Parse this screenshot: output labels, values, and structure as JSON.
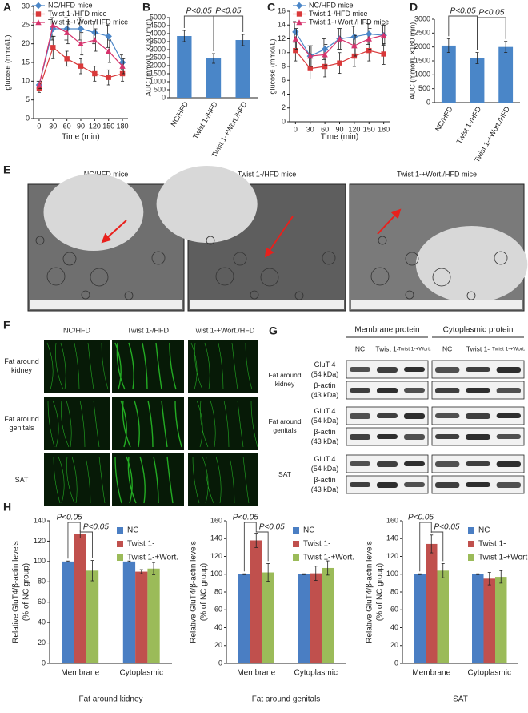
{
  "chart_data": [
    {
      "panel": "A",
      "type": "line",
      "x": [
        0,
        30,
        60,
        90,
        120,
        150,
        180
      ],
      "xlim": [
        -12,
        192
      ],
      "xticks": [
        0,
        30,
        60,
        90,
        120,
        150,
        180
      ],
      "ylim": [
        0,
        30
      ],
      "yticks": [
        0,
        5,
        10,
        15,
        20,
        25,
        30
      ],
      "xlabel": "Time (min)",
      "ylabel": "glucose (mmol/L)",
      "legend": "top-left",
      "series": [
        {
          "name": "NC/HFD mice",
          "color": "#4a86c8",
          "marker": "diamond",
          "values": [
            9,
            24,
            24,
            24,
            23,
            22,
            15
          ],
          "errors": [
            1,
            3,
            3,
            3,
            3,
            3,
            2
          ]
        },
        {
          "name": "Twist 1-/HFD mice",
          "color": "#d9393a",
          "marker": "square",
          "values": [
            8,
            19,
            16,
            14,
            12,
            11,
            12
          ],
          "errors": [
            1,
            3,
            2,
            2,
            2,
            2,
            2
          ]
        },
        {
          "name": "Twist 1-+Wort./HFD mice",
          "color": "#d6336c",
          "marker": "triangle",
          "values": [
            9,
            25,
            23,
            20,
            21,
            18,
            14
          ],
          "errors": [
            1,
            3,
            3,
            3,
            3,
            3,
            2
          ]
        }
      ]
    },
    {
      "panel": "B",
      "type": "bar",
      "categories": [
        "NC/HFD",
        "Twist 1-/HFD",
        "Twist 1-+Wort./HFD"
      ],
      "values": [
        3850,
        2450,
        3600
      ],
      "errors": [
        350,
        300,
        350
      ],
      "color": "#4a86c8",
      "ylim": [
        0,
        5000
      ],
      "yticks": [
        0,
        500,
        1000,
        1500,
        2000,
        2500,
        3000,
        3500,
        4000,
        4500,
        5000
      ],
      "ylabel": "AUC (mmol/L ×180 min)",
      "annotations": [
        "P<0.05",
        "P<0.05"
      ]
    },
    {
      "panel": "C",
      "type": "line",
      "x": [
        0,
        30,
        60,
        90,
        120,
        150,
        180
      ],
      "xlim": [
        -12,
        192
      ],
      "xticks": [
        0,
        30,
        60,
        90,
        120,
        150,
        180
      ],
      "ylim": [
        0,
        16
      ],
      "yticks": [
        0,
        2,
        4,
        6,
        8,
        10,
        12,
        14,
        16
      ],
      "xlabel": "Time (min)",
      "ylabel": "glucose (mmol/L)",
      "legend": "top-left",
      "series": [
        {
          "name": "NC/HFD mice",
          "color": "#4a86c8",
          "marker": "diamond",
          "values": [
            13,
            9.5,
            10.5,
            12,
            12.3,
            12.7,
            12.5
          ],
          "errors": [
            1.5,
            1.5,
            1.5,
            1.5,
            1.5,
            1.5,
            1.5
          ]
        },
        {
          "name": "Twist 1-/HFD mice",
          "color": "#d9393a",
          "marker": "square",
          "values": [
            10.3,
            7.7,
            8,
            8.5,
            9.5,
            10.3,
            9.8
          ],
          "errors": [
            1.5,
            1.5,
            1.5,
            1.5,
            1.5,
            1.5,
            1.5
          ]
        },
        {
          "name": "Twist 1-+Wort./HFD mice",
          "color": "#d6336c",
          "marker": "triangle",
          "values": [
            12,
            9.5,
            9.7,
            12,
            11,
            12,
            12.5
          ],
          "errors": [
            1.5,
            1.5,
            1.5,
            1.5,
            1.5,
            1.5,
            1.5
          ]
        }
      ]
    },
    {
      "panel": "D",
      "type": "bar",
      "categories": [
        "NC/HFD",
        "Twist 1-/HFD",
        "Twist 1-+Wort./HFD"
      ],
      "values": [
        2050,
        1600,
        2000
      ],
      "errors": [
        250,
        200,
        200
      ],
      "color": "#4a86c8",
      "ylim": [
        0,
        3000
      ],
      "yticks": [
        0,
        500,
        1000,
        1500,
        2000,
        2500,
        3000
      ],
      "ylabel": "AUC (mmol/L ×180 min)",
      "annotations": [
        "P<0.05",
        "P<0.05"
      ]
    },
    {
      "panel": "H",
      "type": "bar",
      "categories": [
        "Membrane",
        "Cytoplasmic"
      ],
      "xlabel": "Fat around kidney",
      "ylabel": [
        "Relative GluT4/β-actin levels",
        "(% of NC group)"
      ],
      "ylim": [
        0,
        140
      ],
      "yticks": [
        0,
        20,
        40,
        60,
        80,
        100,
        120,
        140
      ],
      "legend": "top-right",
      "annotations": [
        "P<0.05",
        "P<0.05"
      ],
      "series": [
        {
          "name": "NC",
          "color": "#4a7ec3",
          "values": [
            100,
            100
          ],
          "errors": [
            0.5,
            0.5
          ]
        },
        {
          "name": "Twist 1-",
          "color": "#c0504d",
          "values": [
            127,
            90
          ],
          "errors": [
            4,
            2
          ]
        },
        {
          "name": "Twist 1-+Wort.",
          "color": "#9bbb59",
          "values": [
            91,
            93
          ],
          "errors": [
            10,
            6
          ]
        }
      ]
    },
    {
      "type": "bar",
      "categories": [
        "Membrane",
        "Cytoplasmic"
      ],
      "xlabel": "Fat around genitals",
      "ylabel": [
        "Relative GluT4/β-actin levels",
        "(% of NC group)"
      ],
      "ylim": [
        0,
        160
      ],
      "yticks": [
        0,
        20,
        40,
        60,
        80,
        100,
        120,
        140,
        160
      ],
      "legend": "top-right",
      "annotations": [
        "P<0.05",
        "P<0.05"
      ],
      "series": [
        {
          "name": "NC",
          "color": "#4a7ec3",
          "values": [
            100,
            100
          ],
          "errors": [
            0.5,
            0.5
          ]
        },
        {
          "name": "Twist 1-",
          "color": "#c0504d",
          "values": [
            138,
            101
          ],
          "errors": [
            8,
            8
          ]
        },
        {
          "name": "Twist 1-+Wort.",
          "color": "#9bbb59",
          "values": [
            102,
            107
          ],
          "errors": [
            10,
            8
          ]
        }
      ]
    },
    {
      "type": "bar",
      "categories": [
        "Membrane",
        "Cytoplasmic"
      ],
      "xlabel": "SAT",
      "ylabel": [
        "Relative GluT4/β-actin levels",
        "(% of NC group)"
      ],
      "ylim": [
        0,
        160
      ],
      "yticks": [
        0,
        20,
        40,
        60,
        80,
        100,
        120,
        140,
        160
      ],
      "legend": "top-right",
      "annotations": [
        "P<0.05",
        "P<0.05"
      ],
      "series": [
        {
          "name": "NC",
          "color": "#4a7ec3",
          "values": [
            100,
            100
          ],
          "errors": [
            0.5,
            0.5
          ]
        },
        {
          "name": "Twist 1-",
          "color": "#c0504d",
          "values": [
            134,
            95
          ],
          "errors": [
            10,
            7
          ]
        },
        {
          "name": "Twist 1-+Wort.",
          "color": "#9bbb59",
          "values": [
            104,
            97
          ],
          "errors": [
            8,
            7
          ]
        }
      ]
    }
  ],
  "panels": {
    "E": {
      "label": "E",
      "titles": [
        "NC/HFD mice",
        "Twist 1-/HFD mice",
        "Twist 1-+Wort./HFD mice"
      ]
    },
    "F": {
      "label": "F",
      "columns": [
        "NC/HFD",
        "Twist 1-/HFD",
        "Twist 1-+Wort./HFD"
      ],
      "rows": [
        "Fat around kidney",
        "Fat around genitals",
        "SAT"
      ]
    },
    "G": {
      "label": "G",
      "groups": [
        "Membrane protein",
        "Cytoplasmic protein"
      ],
      "lanes": [
        "NC",
        "Twist 1-",
        "Twist 1-+Wort."
      ],
      "rows": [
        "Fat around kidney",
        "Fat around genitals",
        "SAT"
      ],
      "bands": [
        "GluT 4",
        "β-actin"
      ],
      "sizes": [
        "(54 kDa)",
        "(43 kDa)"
      ]
    }
  }
}
